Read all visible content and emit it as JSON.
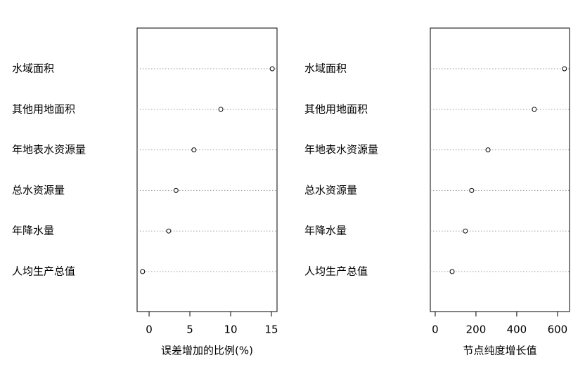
{
  "chart_data": [
    {
      "type": "dot",
      "xlabel": "误差增加的比例(%)",
      "categories": [
        "水域面积",
        "其他用地面积",
        "年地表水资源量",
        "总水资源量",
        "年降水量",
        "人均生产总值"
      ],
      "values": [
        15.1,
        8.8,
        5.5,
        3.3,
        2.4,
        -0.8
      ],
      "xlim": [
        -1.47,
        15.69
      ],
      "xticks": [
        0,
        5,
        10,
        15
      ]
    },
    {
      "type": "dot",
      "xlabel": "节点纯度增长值",
      "categories": [
        "水域面积",
        "其他用地面积",
        "年地表水资源量",
        "总水资源量",
        "年降水量",
        "人均生产总值"
      ],
      "values": [
        634,
        486,
        259,
        179,
        148,
        83
      ],
      "xlim": [
        -24,
        659
      ],
      "xticks": [
        0,
        200,
        400,
        600
      ]
    }
  ]
}
